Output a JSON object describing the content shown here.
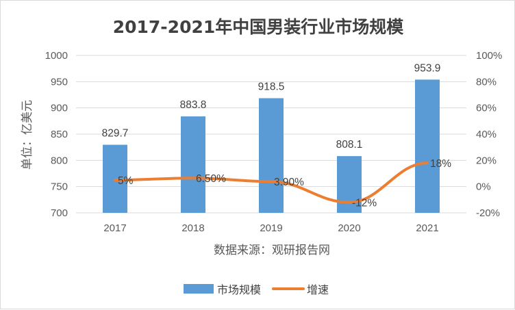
{
  "chart_data": {
    "type": "bar+line",
    "title": "2017-2021年中国男装行业市场规模",
    "categories": [
      "2017",
      "2018",
      "2019",
      "2020",
      "2021"
    ],
    "series": [
      {
        "name": "市场规模",
        "type": "bar",
        "axis": "left",
        "values": [
          829.7,
          883.8,
          918.5,
          808.1,
          953.9
        ],
        "labels": [
          "829.7",
          "883.8",
          "918.5",
          "808.1",
          "953.9"
        ],
        "color": "#5b9bd5"
      },
      {
        "name": "增速",
        "type": "line",
        "axis": "right",
        "values": [
          5,
          6.5,
          3.9,
          -12,
          18
        ],
        "labels": [
          "5%",
          "6.50%",
          "3.90%",
          "-12%",
          "18%"
        ],
        "color": "#ed7d31"
      }
    ],
    "ylabel": "单位：亿美元",
    "xlabel": "数据来源：观研报告网",
    "y_left": {
      "min": 700,
      "max": 1000,
      "ticks": [
        700,
        750,
        800,
        850,
        900,
        950,
        1000
      ],
      "tick_labels": [
        "700",
        "750",
        "800",
        "850",
        "900",
        "950",
        "1000"
      ]
    },
    "y_right": {
      "min": -20,
      "max": 100,
      "ticks": [
        -20,
        0,
        20,
        40,
        60,
        80,
        100
      ],
      "tick_labels": [
        "-20%",
        "0%",
        "20%",
        "40%",
        "60%",
        "80%",
        "100%"
      ]
    },
    "legend": {
      "position": "bottom",
      "items": [
        "市场规模",
        "增速"
      ]
    },
    "grid": true,
    "colors": {
      "bar": "#5b9bd5",
      "line": "#ed7d31",
      "grid": "#d9d9d9",
      "text": "#595959"
    }
  }
}
